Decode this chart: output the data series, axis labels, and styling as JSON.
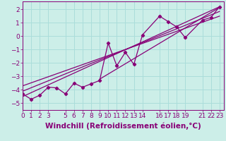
{
  "xlabel": "Windchill (Refroidissement éolien,°C)",
  "bg_color": "#cceee8",
  "grid_color": "#aaddda",
  "line_color": "#880077",
  "scatter_x": [
    0,
    1,
    2,
    3,
    4,
    5,
    6,
    7,
    8,
    9,
    10,
    11,
    12,
    13,
    14,
    16,
    17,
    18,
    19,
    21,
    22,
    23
  ],
  "scatter_y": [
    -4.3,
    -4.7,
    -4.4,
    -3.8,
    -3.85,
    -4.3,
    -3.5,
    -3.8,
    -3.55,
    -3.3,
    -0.5,
    -2.2,
    -1.2,
    -2.1,
    0.1,
    1.5,
    1.1,
    0.7,
    -0.1,
    1.2,
    1.4,
    2.2
  ],
  "lines": [
    {
      "x": [
        0,
        23
      ],
      "y": [
        -4.5,
        2.2
      ]
    },
    {
      "x": [
        0,
        23
      ],
      "y": [
        -4.1,
        1.85
      ]
    },
    {
      "x": [
        0,
        23
      ],
      "y": [
        -3.7,
        1.5
      ]
    },
    {
      "x": [
        9,
        23
      ],
      "y": [
        -3.2,
        2.15
      ]
    }
  ],
  "xlim": [
    0,
    23.5
  ],
  "ylim": [
    -5.5,
    2.6
  ],
  "xticks": [
    0,
    1,
    2,
    3,
    5,
    6,
    7,
    8,
    9,
    10,
    11,
    12,
    13,
    14,
    16,
    17,
    18,
    19,
    21,
    22,
    23
  ],
  "yticks": [
    -5,
    -4,
    -3,
    -2,
    -1,
    0,
    1,
    2
  ],
  "font_color": "#880077",
  "tick_fontsize": 6.5,
  "xlabel_fontsize": 7.5
}
